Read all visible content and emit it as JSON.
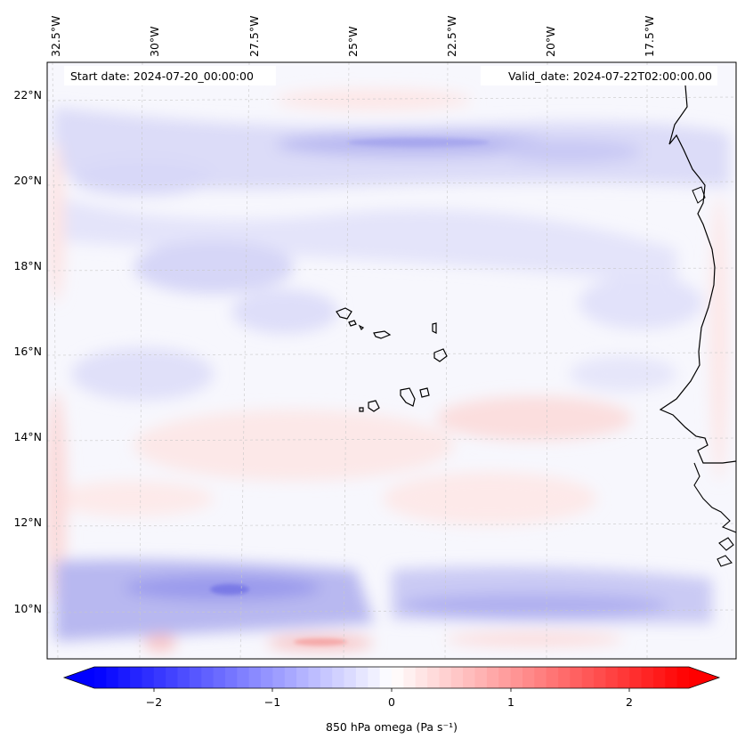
{
  "map": {
    "header": {
      "start_date": "Start date: 2024-07-20_00:00:00",
      "valid_date": "Valid_date: 2024-07-22T02:00:00.00"
    },
    "lon_labels": [
      "32.5°W",
      "30°W",
      "27.5°W",
      "25°W",
      "22.5°W",
      "20°W",
      "17.5°W"
    ],
    "lat_labels": [
      "22°N",
      "20°N",
      "18°N",
      "16°N",
      "14°N",
      "12°N",
      "10°N"
    ],
    "colorbar": {
      "label": "850 hPa omega (Pa s⁻¹)",
      "ticks": [
        "−2",
        "−1",
        "0",
        "1",
        "2"
      ],
      "vmin": -2.7,
      "vmax": 2.7,
      "colors": {
        "min": "#0000ff",
        "mid": "#ffffff",
        "max": "#ff0000"
      }
    }
  }
}
